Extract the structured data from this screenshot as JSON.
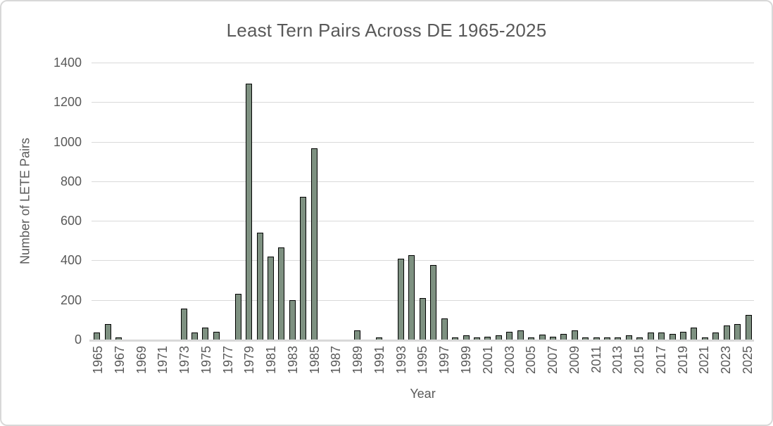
{
  "chart_data": {
    "type": "bar",
    "title": "Least Tern Pairs Across DE 1965-2025",
    "xlabel": "Year",
    "ylabel": "Number of LETE Pairs",
    "ylim": [
      0,
      1400
    ],
    "yticks": [
      0,
      200,
      400,
      600,
      800,
      1000,
      1200,
      1400
    ],
    "grid": true,
    "legend_position": "none",
    "bar_color": "#7E9181",
    "bar_border_color": "#000000",
    "gridline_color": "#D9D9D9",
    "text_color": "#595959",
    "x": [
      1965,
      1966,
      1967,
      1968,
      1969,
      1970,
      1971,
      1972,
      1973,
      1974,
      1975,
      1976,
      1977,
      1978,
      1979,
      1980,
      1981,
      1982,
      1983,
      1984,
      1985,
      1986,
      1987,
      1988,
      1989,
      1990,
      1991,
      1992,
      1993,
      1994,
      1995,
      1996,
      1997,
      1998,
      1999,
      2000,
      2001,
      2002,
      2003,
      2004,
      2005,
      2006,
      2007,
      2008,
      2009,
      2010,
      2011,
      2012,
      2013,
      2014,
      2015,
      2016,
      2017,
      2018,
      2019,
      2020,
      2021,
      2022,
      2023,
      2024,
      2025
    ],
    "values": [
      35,
      80,
      5,
      0,
      0,
      0,
      0,
      0,
      155,
      35,
      60,
      40,
      0,
      230,
      1295,
      540,
      420,
      465,
      200,
      720,
      965,
      0,
      0,
      0,
      45,
      0,
      5,
      0,
      410,
      425,
      210,
      375,
      105,
      5,
      20,
      5,
      15,
      20,
      40,
      45,
      10,
      25,
      15,
      30,
      45,
      5,
      5,
      5,
      5,
      20,
      5,
      35,
      35,
      30,
      40,
      60,
      10,
      35,
      70,
      80,
      125
    ],
    "xtick_labels": [
      "1965",
      "1967",
      "1969",
      "1971",
      "1973",
      "1975",
      "1977",
      "1979",
      "1981",
      "1983",
      "1985",
      "1987",
      "1989",
      "1991",
      "1993",
      "1995",
      "1997",
      "1999",
      "2001",
      "2003",
      "2005",
      "2007",
      "2009",
      "2011",
      "2013",
      "2015",
      "2017",
      "2019",
      "2021",
      "2023",
      "2025"
    ]
  }
}
